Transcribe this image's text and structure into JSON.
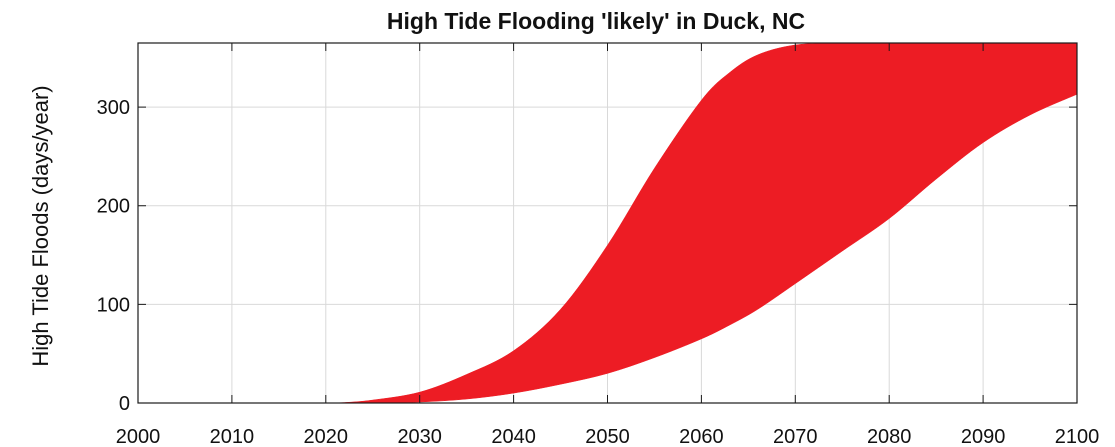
{
  "chart_data": {
    "type": "area",
    "title": "High Tide Flooding 'likely' in Duck, NC",
    "xlabel": "",
    "ylabel": "High Tide Floods (days/year)",
    "xlim": [
      2000,
      2100
    ],
    "ylim": [
      0,
      365
    ],
    "x_ticks": [
      2000,
      2010,
      2020,
      2030,
      2040,
      2050,
      2060,
      2070,
      2080,
      2090,
      2100
    ],
    "y_ticks": [
      0,
      100,
      200,
      300
    ],
    "grid": true,
    "legend": "none",
    "series": [
      {
        "color": "#ed1c24",
        "x": [
          2020,
          2022,
          2025,
          2030,
          2035,
          2040,
          2045,
          2050,
          2055,
          2060,
          2063,
          2066,
          2070,
          2075,
          2080,
          2085,
          2090,
          2095,
          2100
        ],
        "upper": [
          0,
          0.5,
          3,
          11,
          29,
          53,
          95,
          160,
          238,
          307,
          335,
          353,
          363,
          365,
          365,
          365,
          365,
          365,
          365
        ],
        "lower": [
          0,
          0,
          0,
          1,
          4,
          10,
          19,
          30,
          46,
          65,
          79,
          95,
          121,
          154,
          187,
          227,
          264,
          292,
          313
        ]
      }
    ]
  }
}
